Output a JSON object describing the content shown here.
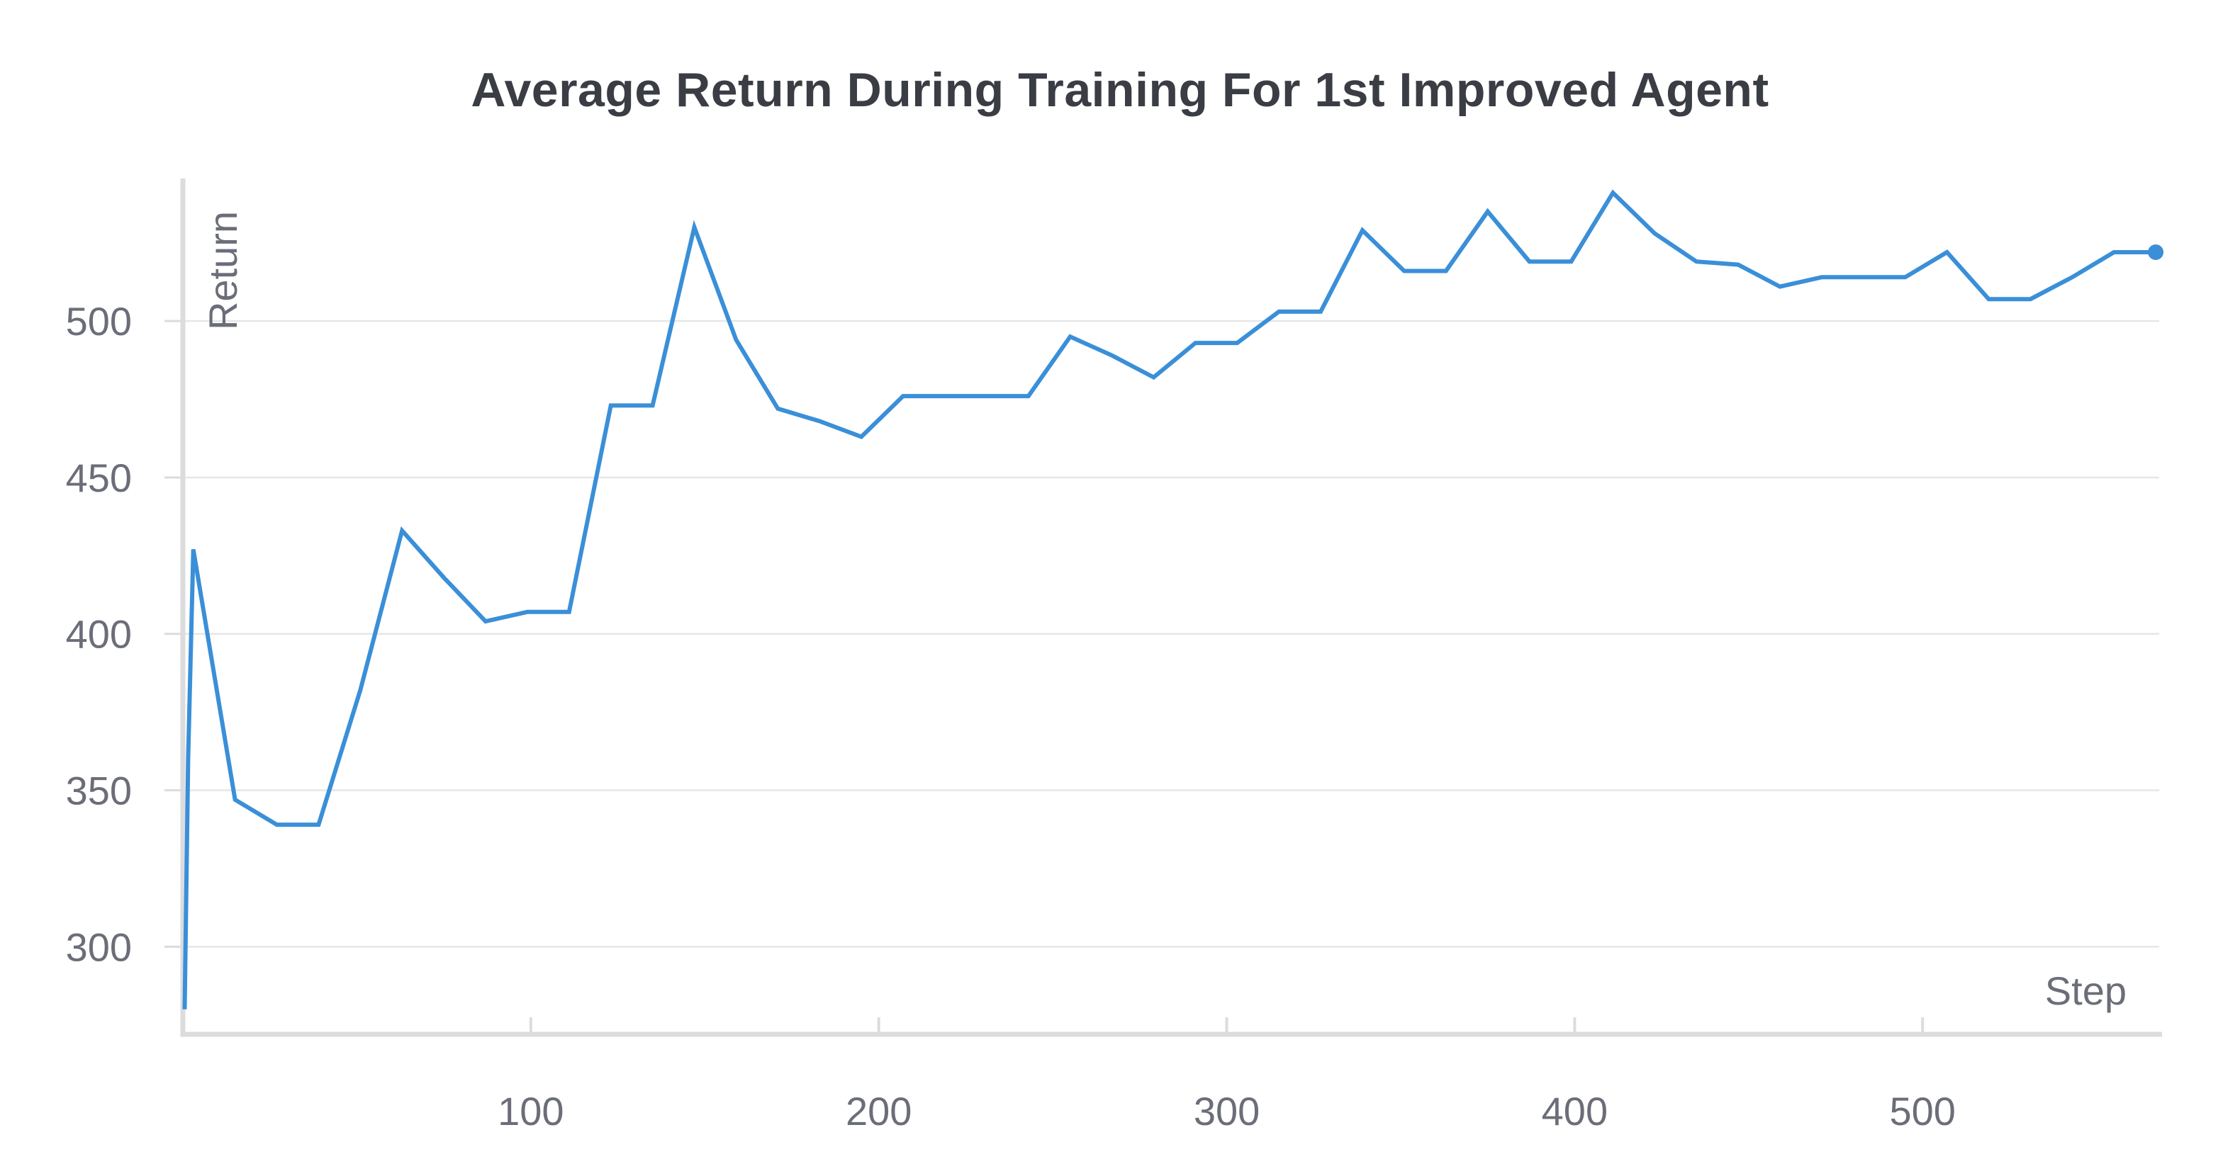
{
  "chart_data": {
    "type": "line",
    "title": "Average Return During Training For 1st Improved Agent",
    "xlabel": "Step",
    "ylabel": "Return",
    "xlim": [
      0,
      568
    ],
    "ylim": [
      272,
      546
    ],
    "x_ticks": [
      100,
      200,
      300,
      400,
      500
    ],
    "y_ticks": [
      300,
      350,
      400,
      450,
      500
    ],
    "grid": true,
    "series": [
      {
        "color": "#3a8fd8",
        "x": [
          0.5,
          1.5,
          3,
          15,
          27,
          39,
          51,
          63,
          75,
          87,
          99,
          111,
          123,
          135,
          147,
          159,
          171,
          183,
          195,
          207,
          219,
          231,
          243,
          255,
          267,
          279,
          291,
          303,
          315,
          327,
          339,
          351,
          363,
          375,
          387,
          399,
          411,
          423,
          435,
          447,
          459,
          471,
          483,
          495,
          507,
          519,
          531,
          543,
          555,
          567
        ],
        "y": [
          280,
          360,
          427,
          347,
          339,
          339,
          382,
          433,
          418,
          404,
          407,
          407,
          473,
          473,
          530,
          494,
          472,
          468,
          463,
          476,
          476,
          476,
          476,
          495,
          489,
          482,
          493,
          493,
          503,
          503,
          529,
          516,
          516,
          535,
          519,
          519,
          541,
          528,
          519,
          518,
          511,
          514,
          514,
          514,
          522,
          507,
          507,
          514,
          522,
          522
        ]
      }
    ]
  }
}
